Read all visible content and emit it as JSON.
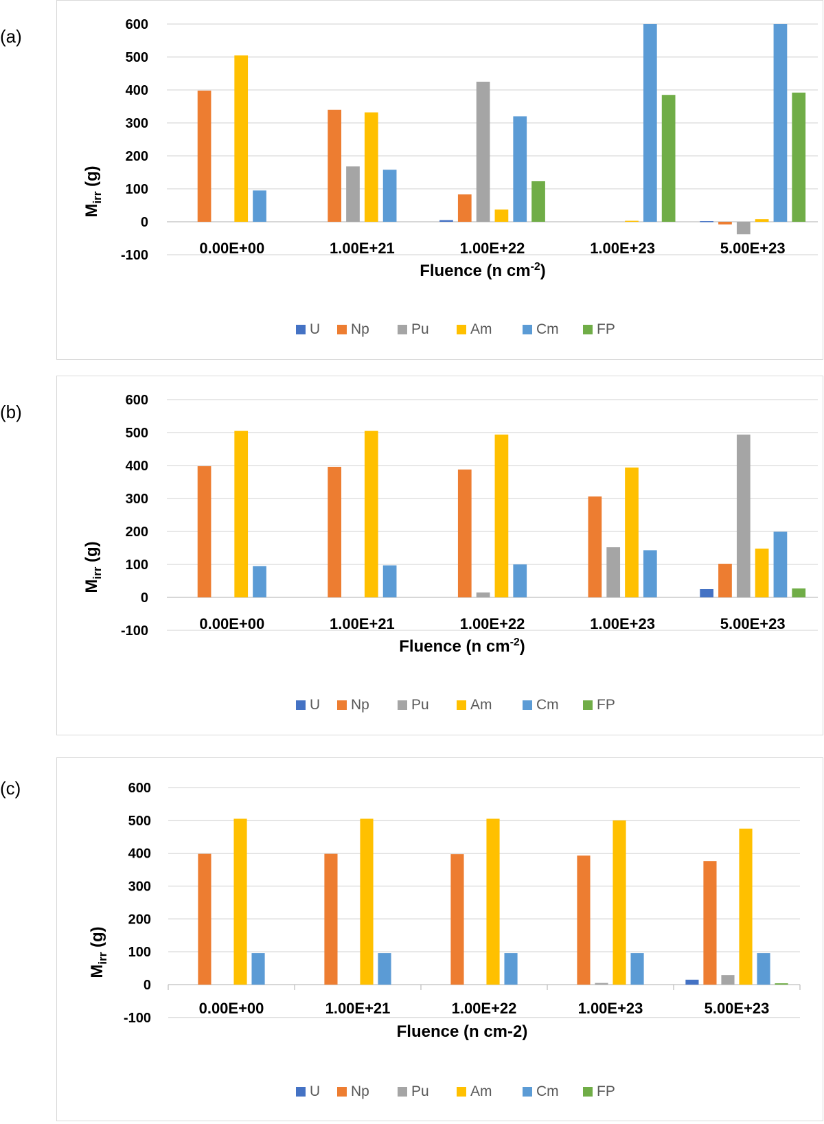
{
  "colors": {
    "U": "#4472c4",
    "Np": "#ed7d31",
    "Pu": "#a5a5a5",
    "Am": "#ffc000",
    "Cm": "#5b9bd5",
    "FP": "#70ad47",
    "grid": "#d9d9d9"
  },
  "chart_data": [
    {
      "panel_label": "(a)",
      "type": "bar",
      "ylabel_main": "M",
      "ylabel_sub": "irr",
      "ylabel_unit": " (g)",
      "xlabel_main": "Fluence (n cm",
      "xlabel_sup": "-2",
      "xlabel_end": ")",
      "ylim": [
        -100,
        600
      ],
      "yticks": [
        "600",
        "500",
        "400",
        "300",
        "200",
        "100",
        "0",
        "-100"
      ],
      "categories": [
        "0.00E+00",
        "1.00E+21",
        "1.00E+22",
        "1.00E+23",
        "5.00E+23"
      ],
      "legend_position": "bottom",
      "series": [
        {
          "name": "U",
          "values": [
            0,
            0,
            5,
            0,
            2
          ]
        },
        {
          "name": "Np",
          "values": [
            398,
            340,
            83,
            0,
            -8
          ]
        },
        {
          "name": "Pu",
          "values": [
            0,
            168,
            425,
            0,
            -38
          ]
        },
        {
          "name": "Am",
          "values": [
            505,
            332,
            37,
            3,
            8
          ]
        },
        {
          "name": "Cm",
          "values": [
            95,
            158,
            320,
            600,
            600
          ]
        },
        {
          "name": "FP",
          "values": [
            0,
            0,
            123,
            385,
            392
          ]
        }
      ]
    },
    {
      "panel_label": "(b)",
      "type": "bar",
      "ylabel_main": "M",
      "ylabel_sub": "irr",
      "ylabel_unit": " (g)",
      "xlabel_main": "Fluence (n cm",
      "xlabel_sup": "-2",
      "xlabel_end": ")",
      "ylim": [
        -100,
        600
      ],
      "yticks": [
        "600",
        "500",
        "400",
        "300",
        "200",
        "100",
        "0",
        "-100"
      ],
      "categories": [
        "0.00E+00",
        "1.00E+21",
        "1.00E+22",
        "1.00E+23",
        "5.00E+23"
      ],
      "legend_position": "bottom",
      "series": [
        {
          "name": "U",
          "values": [
            0,
            0,
            0,
            0,
            25
          ]
        },
        {
          "name": "Np",
          "values": [
            398,
            396,
            388,
            306,
            102
          ]
        },
        {
          "name": "Pu",
          "values": [
            0,
            0,
            15,
            152,
            494
          ]
        },
        {
          "name": "Am",
          "values": [
            505,
            505,
            494,
            394,
            148
          ]
        },
        {
          "name": "Cm",
          "values": [
            95,
            97,
            100,
            143,
            199
          ]
        },
        {
          "name": "FP",
          "values": [
            0,
            0,
            0,
            0,
            27
          ]
        }
      ]
    },
    {
      "panel_label": "(c)",
      "type": "bar",
      "ylabel_main": "M",
      "ylabel_sub": "irr",
      "ylabel_unit": " (g)",
      "xlabel_main": "Fluence (n cm-2)",
      "xlabel_sup": "",
      "xlabel_end": "",
      "ylim": [
        -100,
        600
      ],
      "yticks": [
        "600",
        "500",
        "400",
        "300",
        "200",
        "100",
        "0",
        "-100"
      ],
      "categories": [
        "0.00E+00",
        "1.00E+21",
        "1.00E+22",
        "1.00E+23",
        "5.00E+23"
      ],
      "legend_position": "bottom",
      "series": [
        {
          "name": "U",
          "values": [
            0,
            0,
            0,
            0,
            15
          ]
        },
        {
          "name": "Np",
          "values": [
            398,
            398,
            397,
            393,
            376
          ]
        },
        {
          "name": "Pu",
          "values": [
            0,
            0,
            0,
            5,
            29
          ]
        },
        {
          "name": "Am",
          "values": [
            505,
            505,
            505,
            500,
            475
          ]
        },
        {
          "name": "Cm",
          "values": [
            96,
            96,
            96,
            96,
            96
          ]
        },
        {
          "name": "FP",
          "values": [
            0,
            0,
            0,
            0,
            4
          ]
        }
      ]
    }
  ]
}
